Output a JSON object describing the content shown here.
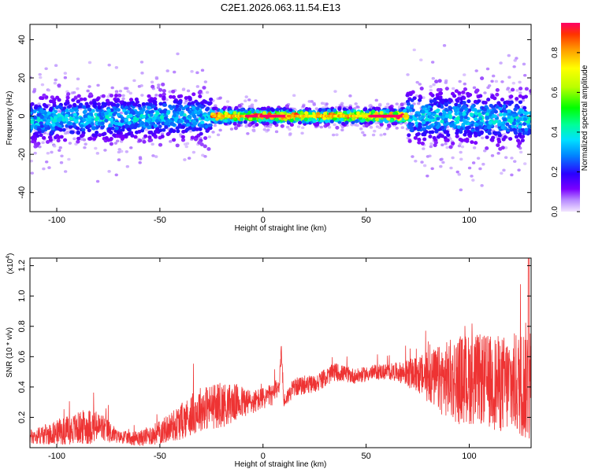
{
  "title": "C2E1.2026.063.11.54.E13",
  "colors": {
    "snr_line": "#ee3333",
    "frame": "#000000",
    "background": "#ffffff"
  },
  "chart_data": [
    {
      "type": "heatmap",
      "title": "C2E1.2026.063.11.54.E13",
      "xlabel": "Height of straight line (km)",
      "ylabel": "Frequency (Hz)",
      "xlim": [
        -113,
        130
      ],
      "ylim": [
        -50,
        48
      ],
      "xticks": [
        -100,
        -50,
        0,
        50,
        100
      ],
      "yticks": [
        -40,
        -20,
        0,
        20,
        40
      ],
      "colorbar": {
        "label": "Normalized spectral amplitude",
        "range": [
          0,
          0.95
        ],
        "ticks": [
          0.0,
          0.2,
          0.4,
          0.6,
          0.8
        ],
        "tick_labels": [
          "0.0",
          "0.2",
          "0.4",
          "0.6",
          "0.8"
        ],
        "colormap": "rainbow"
      },
      "description_points": [
        {
          "x_range": [
            -113,
            -25
          ],
          "freq_center": 0,
          "freq_spread": 6,
          "amplitude": 0.3
        },
        {
          "x_range": [
            -25,
            70
          ],
          "freq_center": 0,
          "freq_spread": 2,
          "amplitude": 0.85
        },
        {
          "x_range": [
            70,
            130
          ],
          "freq_center": 0,
          "freq_spread": 7,
          "amplitude": 0.3
        }
      ]
    },
    {
      "type": "line",
      "xlabel": "Height of straight line (km)",
      "ylabel": "SNR (10 * v/v)",
      "y_multiplier_label": "(x10",
      "y_multiplier_exp": "4",
      "y_multiplier_close": ")",
      "xlim": [
        -113,
        130
      ],
      "ylim": [
        0,
        1.25
      ],
      "xticks": [
        -100,
        -50,
        0,
        50,
        100
      ],
      "yticks": [
        0.2,
        0.4,
        0.6,
        0.8,
        1.0,
        1.2
      ],
      "ytick_labels": [
        "0.2",
        "0.4",
        "0.6",
        "0.8",
        "1.0",
        "1.2"
      ],
      "series": [
        {
          "name": "SNR",
          "envelope": {
            "x": [
              -113,
              -100,
              -85,
              -78,
              -70,
              -60,
              -50,
              -40,
              -30,
              -20,
              -12,
              -5,
              5,
              8,
              9,
              10,
              15,
              25,
              35,
              45,
              55,
              65,
              75,
              85,
              95,
              105,
              115,
              125,
              130
            ],
            "mean": [
              0.07,
              0.1,
              0.14,
              0.13,
              0.07,
              0.06,
              0.1,
              0.17,
              0.26,
              0.28,
              0.3,
              0.3,
              0.35,
              0.42,
              0.68,
              0.3,
              0.4,
              0.42,
              0.5,
              0.47,
              0.5,
              0.5,
              0.48,
              0.45,
              0.45,
              0.45,
              0.42,
              0.42,
              0.45
            ],
            "amp": [
              0.05,
              0.08,
              0.12,
              0.1,
              0.04,
              0.05,
              0.08,
              0.12,
              0.15,
              0.15,
              0.12,
              0.08,
              0.07,
              0.06,
              0.08,
              0.05,
              0.06,
              0.06,
              0.06,
              0.05,
              0.05,
              0.06,
              0.12,
              0.22,
              0.3,
              0.3,
              0.32,
              0.35,
              0.45
            ]
          }
        }
      ]
    }
  ]
}
